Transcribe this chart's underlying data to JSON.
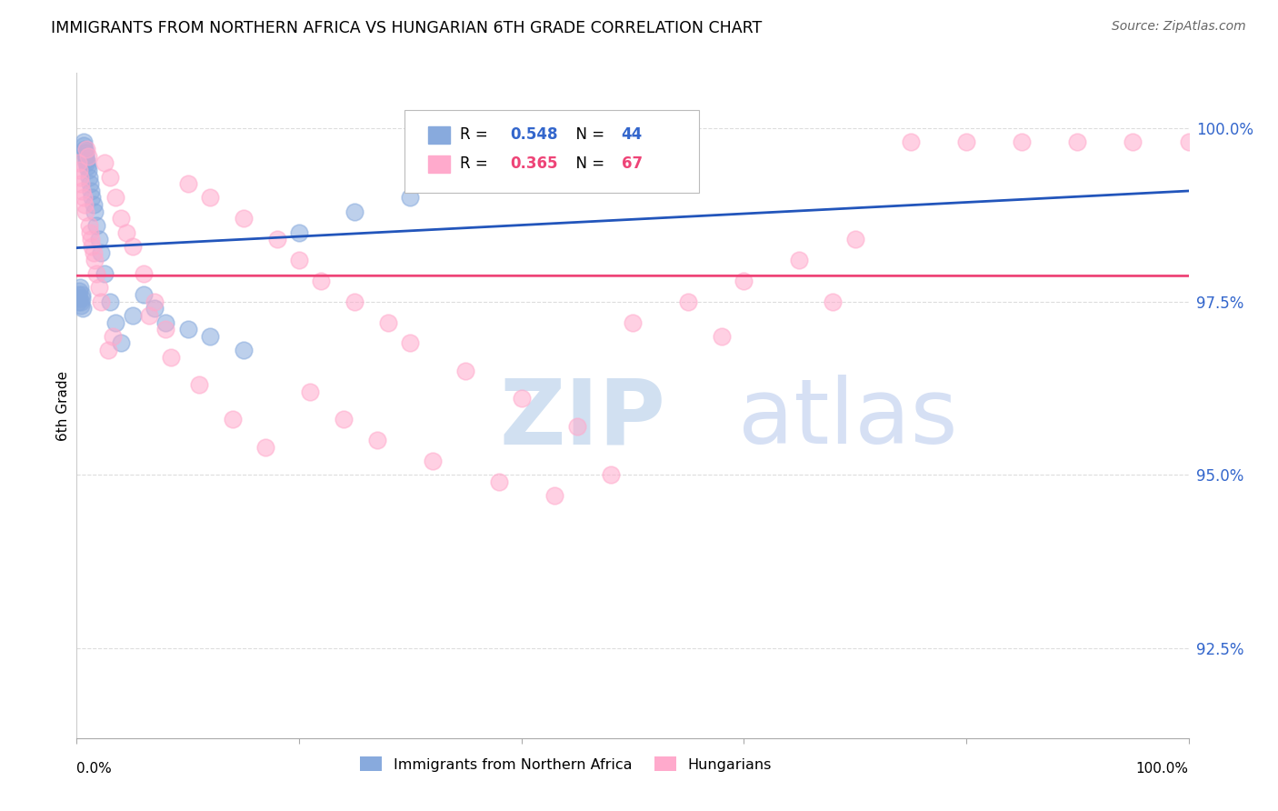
{
  "title": "IMMIGRANTS FROM NORTHERN AFRICA VS HUNGARIAN 6TH GRADE CORRELATION CHART",
  "source": "Source: ZipAtlas.com",
  "ylabel": "6th Grade",
  "yticks": [
    92.5,
    95.0,
    97.5,
    100.0
  ],
  "ytick_labels": [
    "92.5%",
    "95.0%",
    "97.5%",
    "100.0%"
  ],
  "xmin": 0.0,
  "xmax": 100.0,
  "ymin": 91.2,
  "ymax": 100.8,
  "legend1_label": "Immigrants from Northern Africa",
  "legend2_label": "Hungarians",
  "r1": 0.548,
  "n1": 44,
  "r2": 0.365,
  "n2": 67,
  "blue_color": "#88AADD",
  "pink_color": "#FFAACC",
  "blue_line_color": "#2255BB",
  "pink_line_color": "#EE4477",
  "blue_points_x": [
    0.1,
    0.15,
    0.2,
    0.25,
    0.3,
    0.35,
    0.4,
    0.45,
    0.5,
    0.55,
    0.6,
    0.65,
    0.7,
    0.75,
    0.8,
    0.85,
    0.9,
    0.95,
    1.0,
    1.1,
    1.2,
    1.3,
    1.4,
    1.5,
    1.6,
    1.8,
    2.0,
    2.2,
    2.5,
    3.0,
    3.5,
    4.0,
    5.0,
    6.0,
    7.0,
    8.0,
    10.0,
    12.0,
    15.0,
    20.0,
    25.0,
    30.0,
    35.0,
    40.0
  ],
  "blue_points_y": [
    97.6,
    97.5,
    97.65,
    97.55,
    97.7,
    97.45,
    97.5,
    97.6,
    97.55,
    97.4,
    99.8,
    99.75,
    99.7,
    99.65,
    99.6,
    99.55,
    99.5,
    99.45,
    99.4,
    99.3,
    99.2,
    99.1,
    99.0,
    98.9,
    98.8,
    98.6,
    98.4,
    98.2,
    97.9,
    97.5,
    97.2,
    96.9,
    97.3,
    97.6,
    97.4,
    97.2,
    97.1,
    97.0,
    96.8,
    98.5,
    98.8,
    99.0,
    99.2,
    99.4
  ],
  "pink_points_x": [
    0.1,
    0.2,
    0.3,
    0.4,
    0.5,
    0.6,
    0.7,
    0.8,
    0.9,
    1.0,
    1.1,
    1.2,
    1.3,
    1.4,
    1.5,
    1.6,
    1.8,
    2.0,
    2.2,
    2.5,
    3.0,
    3.5,
    4.0,
    5.0,
    6.0,
    7.0,
    8.0,
    10.0,
    12.0,
    15.0,
    18.0,
    20.0,
    22.0,
    25.0,
    28.0,
    30.0,
    35.0,
    40.0,
    45.0,
    50.0,
    55.0,
    60.0,
    65.0,
    70.0,
    75.0,
    80.0,
    85.0,
    90.0,
    95.0,
    100.0,
    2.8,
    3.2,
    4.5,
    6.5,
    8.5,
    11.0,
    14.0,
    17.0,
    21.0,
    24.0,
    27.0,
    32.0,
    38.0,
    43.0,
    48.0,
    58.0,
    68.0
  ],
  "pink_points_y": [
    99.5,
    99.4,
    99.3,
    99.2,
    99.1,
    99.0,
    98.9,
    98.8,
    99.7,
    99.6,
    98.6,
    98.5,
    98.4,
    98.3,
    98.2,
    98.1,
    97.9,
    97.7,
    97.5,
    99.5,
    99.3,
    99.0,
    98.7,
    98.3,
    97.9,
    97.5,
    97.1,
    99.2,
    99.0,
    98.7,
    98.4,
    98.1,
    97.8,
    97.5,
    97.2,
    96.9,
    96.5,
    96.1,
    95.7,
    97.2,
    97.5,
    97.8,
    98.1,
    98.4,
    99.8,
    99.8,
    99.8,
    99.8,
    99.8,
    99.8,
    96.8,
    97.0,
    98.5,
    97.3,
    96.7,
    96.3,
    95.8,
    95.4,
    96.2,
    95.8,
    95.5,
    95.2,
    94.9,
    94.7,
    95.0,
    97.0,
    97.5
  ]
}
